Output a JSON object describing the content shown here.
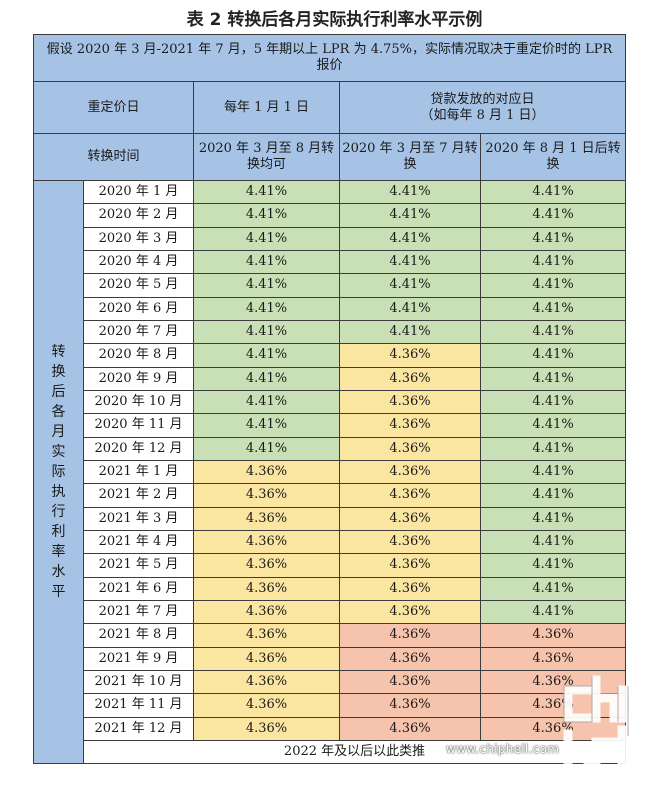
{
  "title": "表 2  转换后各月实际执行利率水平示例",
  "assumption": "假设 2020 年 3 月-2021 年 7 月，5 年期以上 LPR 为 4.75%，实际情况取决于重定价时的 LPR 报价",
  "header": {
    "reprice_label": "重定价日",
    "col_jan1": "每年 1 月 1 日",
    "col_loan_line1": "贷款发放的对应日",
    "col_loan_line2": "（如每年 8 月 1 日）",
    "convert_label": "转换时间",
    "conv_a": "2020 年 3 月至 8 月转换均可",
    "conv_b": "2020 年 3 月至 7 月转换",
    "conv_c": "2020 年 8 月 1 日后转换"
  },
  "side_label": [
    "转",
    "换",
    "后",
    "各",
    "月",
    "实",
    "际",
    "执",
    "行",
    "利",
    "率",
    "水",
    "平"
  ],
  "rows": [
    {
      "month": "2020 年 1 月",
      "a": "4.41%",
      "b": "4.41%",
      "c": "4.41%",
      "ca": "green",
      "cb": "green",
      "cc": "green"
    },
    {
      "month": "2020 年 2 月",
      "a": "4.41%",
      "b": "4.41%",
      "c": "4.41%",
      "ca": "green",
      "cb": "green",
      "cc": "green"
    },
    {
      "month": "2020 年 3 月",
      "a": "4.41%",
      "b": "4.41%",
      "c": "4.41%",
      "ca": "green",
      "cb": "green",
      "cc": "green"
    },
    {
      "month": "2020 年 4 月",
      "a": "4.41%",
      "b": "4.41%",
      "c": "4.41%",
      "ca": "green",
      "cb": "green",
      "cc": "green"
    },
    {
      "month": "2020 年 5 月",
      "a": "4.41%",
      "b": "4.41%",
      "c": "4.41%",
      "ca": "green",
      "cb": "green",
      "cc": "green"
    },
    {
      "month": "2020 年 6 月",
      "a": "4.41%",
      "b": "4.41%",
      "c": "4.41%",
      "ca": "green",
      "cb": "green",
      "cc": "green"
    },
    {
      "month": "2020 年 7 月",
      "a": "4.41%",
      "b": "4.41%",
      "c": "4.41%",
      "ca": "green",
      "cb": "green",
      "cc": "green"
    },
    {
      "month": "2020 年 8 月",
      "a": "4.41%",
      "b": "4.36%",
      "c": "4.41%",
      "ca": "green",
      "cb": "yellow",
      "cc": "green"
    },
    {
      "month": "2020 年 9 月",
      "a": "4.41%",
      "b": "4.36%",
      "c": "4.41%",
      "ca": "green",
      "cb": "yellow",
      "cc": "green"
    },
    {
      "month": "2020 年 10 月",
      "a": "4.41%",
      "b": "4.36%",
      "c": "4.41%",
      "ca": "green",
      "cb": "yellow",
      "cc": "green"
    },
    {
      "month": "2020 年 11 月",
      "a": "4.41%",
      "b": "4.36%",
      "c": "4.41%",
      "ca": "green",
      "cb": "yellow",
      "cc": "green"
    },
    {
      "month": "2020 年 12 月",
      "a": "4.41%",
      "b": "4.36%",
      "c": "4.41%",
      "ca": "green",
      "cb": "yellow",
      "cc": "green"
    },
    {
      "month": "2021 年 1 月",
      "a": "4.36%",
      "b": "4.36%",
      "c": "4.41%",
      "ca": "yellow",
      "cb": "yellow",
      "cc": "green"
    },
    {
      "month": "2021 年 2 月",
      "a": "4.36%",
      "b": "4.36%",
      "c": "4.41%",
      "ca": "yellow",
      "cb": "yellow",
      "cc": "green"
    },
    {
      "month": "2021 年 3 月",
      "a": "4.36%",
      "b": "4.36%",
      "c": "4.41%",
      "ca": "yellow",
      "cb": "yellow",
      "cc": "green"
    },
    {
      "month": "2021 年 4 月",
      "a": "4.36%",
      "b": "4.36%",
      "c": "4.41%",
      "ca": "yellow",
      "cb": "yellow",
      "cc": "green"
    },
    {
      "month": "2021 年 5 月",
      "a": "4.36%",
      "b": "4.36%",
      "c": "4.41%",
      "ca": "yellow",
      "cb": "yellow",
      "cc": "green"
    },
    {
      "month": "2021 年 6 月",
      "a": "4.36%",
      "b": "4.36%",
      "c": "4.41%",
      "ca": "yellow",
      "cb": "yellow",
      "cc": "green"
    },
    {
      "month": "2021 年 7 月",
      "a": "4.36%",
      "b": "4.36%",
      "c": "4.41%",
      "ca": "yellow",
      "cb": "yellow",
      "cc": "green"
    },
    {
      "month": "2021 年 8 月",
      "a": "4.36%",
      "b": "4.36%",
      "c": "4.36%",
      "ca": "yellow",
      "cb": "pink",
      "cc": "pink"
    },
    {
      "month": "2021 年 9 月",
      "a": "4.36%",
      "b": "4.36%",
      "c": "4.36%",
      "ca": "yellow",
      "cb": "pink",
      "cc": "pink"
    },
    {
      "month": "2021 年 10 月",
      "a": "4.36%",
      "b": "4.36%",
      "c": "4.36%",
      "ca": "yellow",
      "cb": "pink",
      "cc": "pink"
    },
    {
      "month": "2021 年 11 月",
      "a": "4.36%",
      "b": "4.36%",
      "c": "4.36%",
      "ca": "yellow",
      "cb": "pink",
      "cc": "pink"
    },
    {
      "month": "2021 年 12 月",
      "a": "4.36%",
      "b": "4.36%",
      "c": "4.36%",
      "ca": "yellow",
      "cb": "pink",
      "cc": "pink"
    }
  ],
  "footer": "2022 年及以后以此类推",
  "watermark": {
    "logo_text": "chip hell",
    "url": "www.chiphell.com"
  },
  "colors": {
    "header_blue": "#a6c3e6",
    "green": "#c9dfb5",
    "yellow": "#fbe6a1",
    "pink": "#f6c3ac"
  }
}
